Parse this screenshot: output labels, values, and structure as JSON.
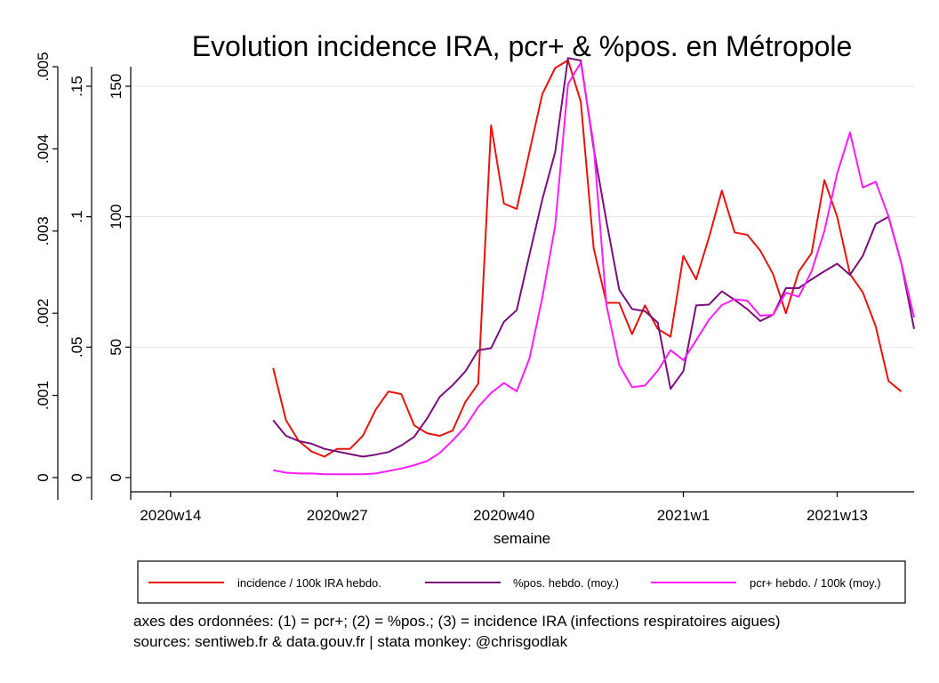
{
  "chart_data": {
    "type": "line",
    "title": "Evolution incidence IRA, pcr+ & %pos. en Métropole",
    "xlabel": "semaine",
    "x_start_label": "2020w22",
    "x_ticks": [
      {
        "label": "2020w14",
        "idx": -8
      },
      {
        "label": "2020w27",
        "idx": 5
      },
      {
        "label": "2020w40",
        "idx": 18
      },
      {
        "label": "2021w1",
        "idx": 32
      },
      {
        "label": "2021w13",
        "idx": 44
      }
    ],
    "x_range": [
      -10,
      50
    ],
    "y_axes": [
      {
        "id": "pcr",
        "range": [
          0,
          0.005
        ],
        "ticks": [
          "0",
          ".001",
          ".002",
          ".003",
          ".004",
          ".005"
        ],
        "tick_values": [
          0,
          0.001,
          0.002,
          0.003,
          0.004,
          0.005
        ]
      },
      {
        "id": "pos",
        "range": [
          0,
          0.1575
        ],
        "ticks": [
          "0",
          ".05",
          ".1",
          ".15"
        ],
        "tick_values": [
          0,
          0.05,
          0.1,
          0.15
        ]
      },
      {
        "id": "ira",
        "range": [
          0,
          157.5
        ],
        "ticks": [
          "0",
          "50",
          "100",
          "150"
        ],
        "tick_values": [
          0,
          50,
          100,
          150
        ]
      }
    ],
    "grid": true,
    "legend_position": "bottom",
    "series": [
      {
        "name": "incidence / 100k IRA hebdo.",
        "axis": "ira",
        "color": "#e8130c",
        "values": [
          42,
          22,
          14,
          10,
          8,
          11,
          11,
          16,
          26,
          33,
          32,
          20,
          17,
          16,
          18,
          29,
          36,
          135,
          105,
          103,
          125,
          147,
          157,
          160,
          144,
          88,
          67,
          67,
          55,
          66,
          57,
          54,
          85,
          76,
          92,
          110,
          94,
          93,
          87,
          78,
          63,
          79,
          86,
          114,
          100,
          78,
          71,
          58,
          37,
          33
        ]
      },
      {
        "name": "%pos. hebdo. (moy.)",
        "axis": "pos",
        "color": "#7a0f7a",
        "values": [
          0.022,
          0.016,
          0.014,
          0.013,
          0.011,
          0.01,
          0.009,
          0.008,
          0.0088,
          0.0098,
          0.0123,
          0.0156,
          0.0226,
          0.031,
          0.0354,
          0.0407,
          0.0488,
          0.0496,
          0.0597,
          0.0642,
          0.0855,
          0.1066,
          0.1247,
          0.1608,
          0.1599,
          0.1262,
          0.0983,
          0.072,
          0.0646,
          0.0638,
          0.0594,
          0.034,
          0.0408,
          0.066,
          0.0663,
          0.0714,
          0.0681,
          0.0645,
          0.06,
          0.0624,
          0.0726,
          0.0726,
          0.076,
          0.0791,
          0.082,
          0.0777,
          0.085,
          0.0972,
          0.1,
          0.0822,
          0.057
        ]
      },
      {
        "name": "pcr+ hebdo. / 100k (moy.)",
        "axis": "pcr",
        "color": "#ff1cff",
        "values": [
          9e-05,
          6e-05,
          5e-05,
          5e-05,
          4e-05,
          4e-05,
          4e-05,
          4e-05,
          5e-05,
          8e-05,
          0.00011,
          0.00015,
          0.0002,
          0.0003,
          0.00045,
          0.00062,
          0.00086,
          0.00103,
          0.00115,
          0.00105,
          0.00145,
          0.00219,
          0.00306,
          0.00479,
          0.00505,
          0.00405,
          0.0021,
          0.00137,
          0.0011,
          0.00112,
          0.0013,
          0.00155,
          0.00143,
          0.00167,
          0.00192,
          0.0021,
          0.00217,
          0.00215,
          0.00197,
          0.00198,
          0.00225,
          0.0022,
          0.00251,
          0.003,
          0.0037,
          0.0042,
          0.00353,
          0.0036,
          0.00318,
          0.00261,
          0.00195
        ]
      }
    ],
    "notes": [
      "axes des ordonnées: (1) = pcr+; (2) = %pos.; (3) = incidence IRA (infections respiratoires aigues)",
      "sources: sentiweb.fr & data.gouv.fr | stata monkey: @chrisgodlak"
    ]
  }
}
